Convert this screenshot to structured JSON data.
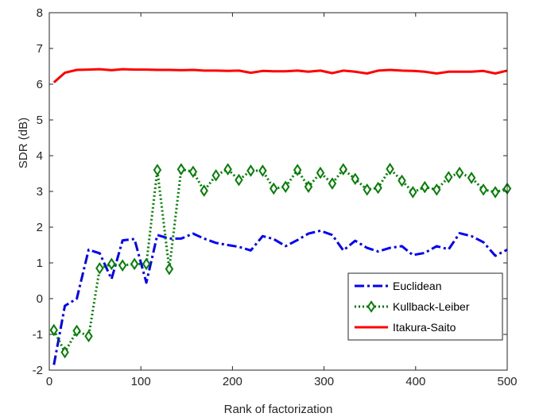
{
  "chart_data": {
    "type": "line",
    "xlabel": "Rank of factorization",
    "ylabel": "SDR (dB)",
    "xlim": [
      0,
      500
    ],
    "ylim": [
      -2,
      8
    ],
    "xticks": [
      0,
      100,
      200,
      300,
      400,
      500
    ],
    "yticks": [
      -2,
      -1,
      0,
      1,
      2,
      3,
      4,
      5,
      6,
      7,
      8
    ],
    "grid": false,
    "box": true,
    "legend_position": "bottom-right",
    "series": [
      {
        "name": "Euclidean",
        "color": "#0000ff",
        "style": "dash-dot",
        "marker": "none",
        "x": [
          5,
          17,
          30,
          43,
          55,
          68,
          80,
          93,
          106,
          118,
          131,
          144,
          157,
          169,
          182,
          195,
          207,
          220,
          233,
          245,
          258,
          271,
          283,
          296,
          309,
          321,
          334,
          347,
          359,
          372,
          385,
          397,
          410,
          423,
          436,
          448,
          461,
          474,
          487,
          500
        ],
        "values": [
          -1.85,
          -0.2,
          0.0,
          1.37,
          1.27,
          0.55,
          1.63,
          1.67,
          0.45,
          1.78,
          1.68,
          1.68,
          1.82,
          1.68,
          1.56,
          1.5,
          1.45,
          1.35,
          1.75,
          1.67,
          1.47,
          1.64,
          1.82,
          1.9,
          1.78,
          1.35,
          1.62,
          1.42,
          1.32,
          1.42,
          1.47,
          1.22,
          1.28,
          1.47,
          1.38,
          1.83,
          1.75,
          1.58,
          1.2,
          1.37
        ]
      },
      {
        "name": "Kullback-Leiber",
        "color": "#008000",
        "style": "dotted",
        "marker": "diamond",
        "x": [
          5,
          17,
          30,
          43,
          55,
          68,
          80,
          93,
          106,
          118,
          131,
          144,
          157,
          169,
          182,
          195,
          207,
          220,
          233,
          245,
          258,
          271,
          283,
          296,
          309,
          321,
          334,
          347,
          359,
          372,
          385,
          397,
          410,
          423,
          436,
          448,
          461,
          474,
          487,
          500
        ],
        "values": [
          -0.88,
          -1.5,
          -0.9,
          -1.05,
          0.85,
          0.97,
          0.93,
          0.97,
          0.97,
          3.6,
          0.83,
          3.62,
          3.55,
          3.02,
          3.45,
          3.62,
          3.32,
          3.58,
          3.58,
          3.08,
          3.13,
          3.6,
          3.13,
          3.52,
          3.22,
          3.62,
          3.35,
          3.05,
          3.1,
          3.63,
          3.3,
          2.98,
          3.12,
          3.05,
          3.4,
          3.52,
          3.38,
          3.05,
          2.98,
          3.08
        ]
      },
      {
        "name": "Itakura-Saito",
        "color": "#ff0000",
        "style": "solid",
        "marker": "none",
        "x": [
          5,
          17,
          30,
          43,
          55,
          68,
          80,
          93,
          106,
          118,
          131,
          144,
          157,
          169,
          182,
          195,
          207,
          220,
          233,
          245,
          258,
          271,
          283,
          296,
          309,
          321,
          334,
          347,
          359,
          372,
          385,
          397,
          410,
          423,
          436,
          448,
          461,
          474,
          487,
          500
        ],
        "values": [
          6.05,
          6.32,
          6.4,
          6.41,
          6.42,
          6.39,
          6.42,
          6.41,
          6.41,
          6.4,
          6.4,
          6.39,
          6.4,
          6.38,
          6.38,
          6.37,
          6.38,
          6.32,
          6.37,
          6.36,
          6.36,
          6.38,
          6.35,
          6.38,
          6.31,
          6.38,
          6.35,
          6.3,
          6.38,
          6.4,
          6.38,
          6.37,
          6.35,
          6.3,
          6.35,
          6.35,
          6.35,
          6.37,
          6.3,
          6.38
        ]
      }
    ]
  }
}
